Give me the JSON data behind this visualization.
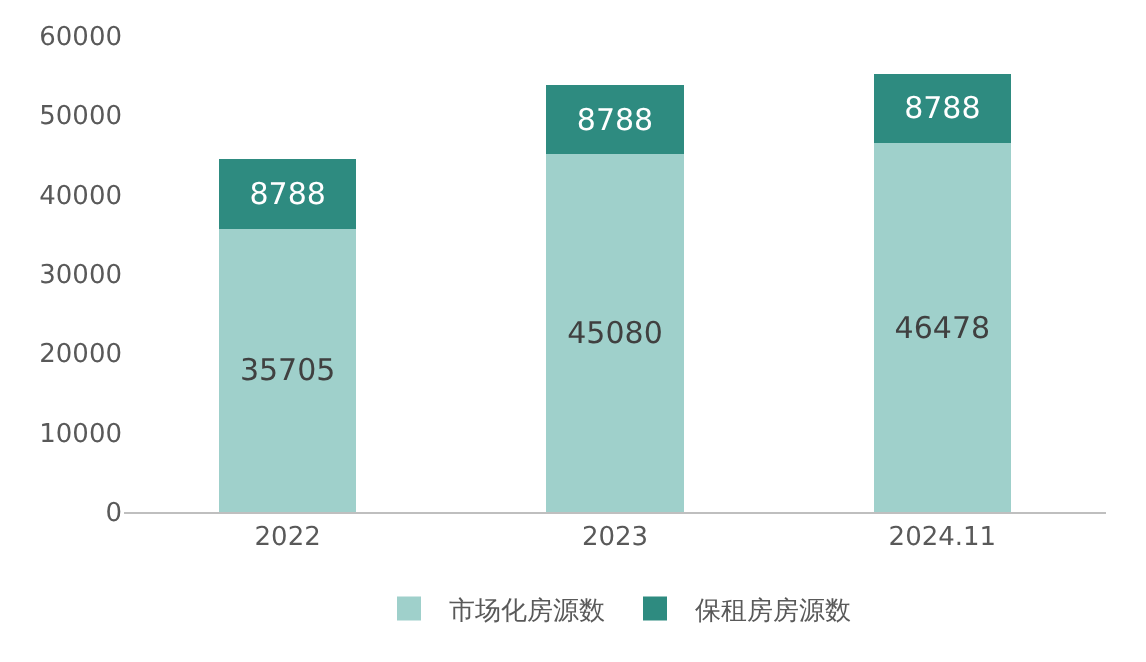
{
  "chart_data": {
    "type": "bar",
    "stacked": true,
    "categories": [
      "2022",
      "2023",
      "2024.11"
    ],
    "series": [
      {
        "name": "市场化房源数",
        "color": "#9fd0cb",
        "values": [
          35705,
          45080,
          46478
        ]
      },
      {
        "name": "保租房房源数",
        "color": "#2e8b80",
        "values": [
          8788,
          8788,
          8788
        ]
      }
    ],
    "ylim": [
      0,
      60000
    ],
    "yticks": [
      0,
      10000,
      20000,
      30000,
      40000,
      50000,
      60000
    ],
    "grid": false,
    "legend": "bottom",
    "data_labels": true
  }
}
